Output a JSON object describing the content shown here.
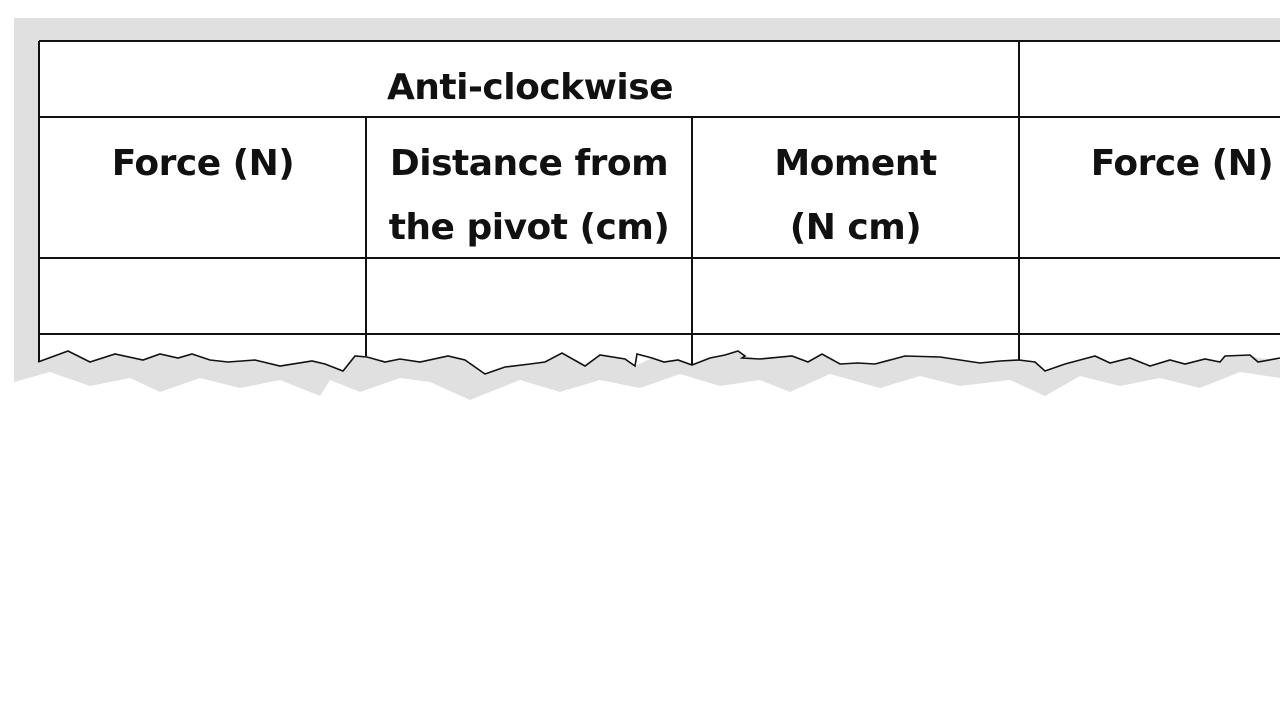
{
  "table": {
    "group_header": "Anti-clockwise",
    "columns": [
      {
        "line1": "Force (N)"
      },
      {
        "line1": "Distance from",
        "line2": "the pivot (cm)"
      },
      {
        "line1": "Moment",
        "line2": "(N cm)"
      },
      {
        "line1": "Force (N)"
      }
    ],
    "rows": [
      [
        "",
        "",
        "",
        ""
      ]
    ],
    "colors": {
      "paper": "#ffffff",
      "shadow": "#e0e0e0",
      "lines": "#111111"
    }
  }
}
